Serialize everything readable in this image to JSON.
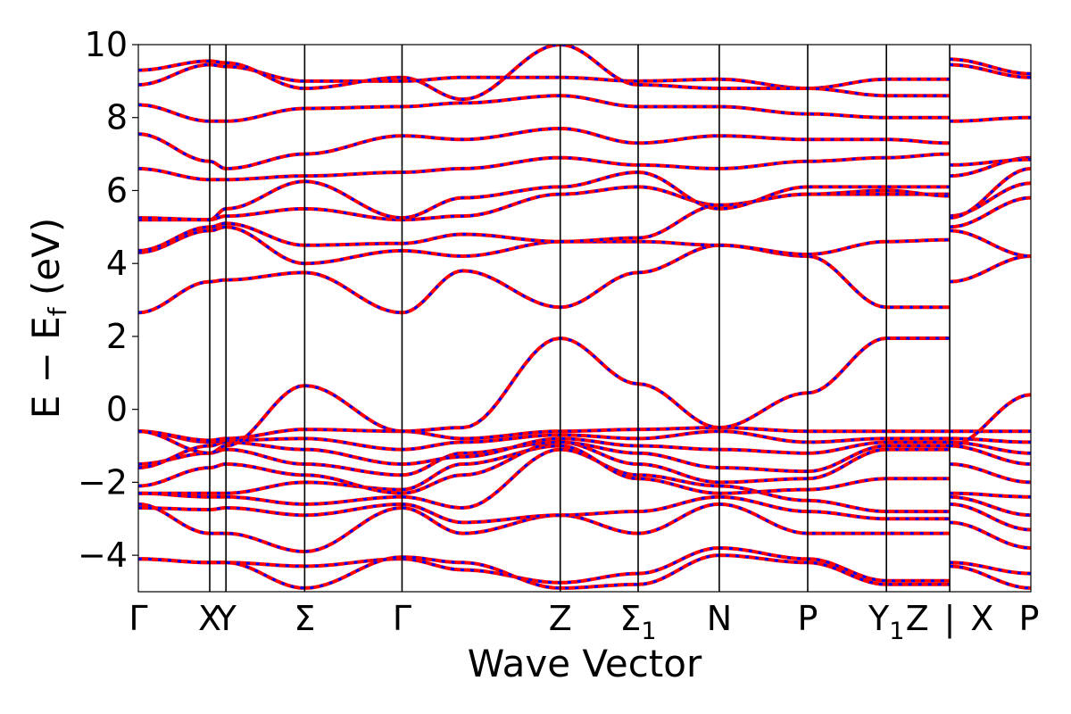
{
  "chart_data": {
    "type": "line",
    "xlabel": "Wave Vector",
    "ylabel": "E − E_f (eV)",
    "ylabel_parts": {
      "main": "E − E",
      "sub": "f",
      "tail": " (eV)"
    },
    "ylim": [
      -5,
      10
    ],
    "yticks": [
      10,
      8,
      6,
      4,
      2,
      0,
      -2,
      -4
    ],
    "ytick_labels": [
      "10",
      "8",
      "6",
      "4",
      "2",
      "0",
      "−2",
      "−4"
    ],
    "grid": false,
    "legend": "none",
    "kpath_positions": [
      0,
      0.088,
      0.108,
      0.205,
      0.325,
      0.52,
      0.616,
      0.716,
      0.825,
      0.922,
      1.0,
      1.0
    ],
    "kpoint_labels": [
      {
        "text": "Γ",
        "pos": 0.0
      },
      {
        "text": "X",
        "pos": 0.088
      },
      {
        "text": "Y",
        "pos": 0.108
      },
      {
        "text": "Σ",
        "pos": 0.205
      },
      {
        "text": "Γ",
        "pos": 0.325
      },
      {
        "text": "Z",
        "pos": 0.52
      },
      {
        "text": "Σ",
        "sub": "1",
        "pos": 0.616
      },
      {
        "text": "N",
        "pos": 0.716
      },
      {
        "text": "P",
        "pos": 0.825
      },
      {
        "text": "Y",
        "sub": "1",
        "pos": 0.922
      },
      {
        "text": "Z",
        "pos": 0.96
      },
      {
        "text": "|",
        "pos": 1.0
      },
      {
        "text": "X",
        "pos": 1.04
      },
      {
        "text": "P",
        "pos": 1.1
      }
    ],
    "vertical_lines": [
      0.088,
      0.108,
      0.205,
      0.325,
      0.52,
      0.616,
      0.716,
      0.825,
      0.922,
      1.0
    ],
    "x_max": 1.1,
    "series_style": {
      "red": "#ff0000",
      "blue": "#0000ff"
    },
    "bands": [
      [
        [
          0,
          -4.1
        ],
        [
          0.088,
          -4.2
        ],
        [
          0.108,
          -4.2
        ],
        [
          0.205,
          -4.3
        ],
        [
          0.325,
          -4.1
        ],
        [
          0.4,
          -4.4
        ],
        [
          0.52,
          -4.75
        ],
        [
          0.616,
          -4.5
        ],
        [
          0.716,
          -3.8
        ],
        [
          0.825,
          -4.1
        ],
        [
          0.922,
          -4.7
        ],
        [
          1.0,
          -4.7
        ],
        [
          1.0,
          -4.2
        ],
        [
          1.1,
          -4.5
        ]
      ],
      [
        [
          0,
          -4.1
        ],
        [
          0.088,
          -4.2
        ],
        [
          0.108,
          -4.2
        ],
        [
          0.205,
          -4.9
        ],
        [
          0.325,
          -4.05
        ],
        [
          0.4,
          -4.2
        ],
        [
          0.52,
          -4.9
        ],
        [
          0.616,
          -4.8
        ],
        [
          0.716,
          -4.0
        ],
        [
          0.825,
          -4.2
        ],
        [
          0.922,
          -4.8
        ],
        [
          1.0,
          -4.8
        ],
        [
          1.0,
          -4.3
        ],
        [
          1.1,
          -4.9
        ]
      ],
      [
        [
          0,
          -2.6
        ],
        [
          0.088,
          -3.4
        ],
        [
          0.108,
          -3.4
        ],
        [
          0.205,
          -3.9
        ],
        [
          0.325,
          -2.7
        ],
        [
          0.4,
          -3.4
        ],
        [
          0.52,
          -2.9
        ],
        [
          0.616,
          -3.4
        ],
        [
          0.716,
          -2.6
        ],
        [
          0.825,
          -3.4
        ],
        [
          0.922,
          -3.4
        ],
        [
          1.0,
          -3.4
        ],
        [
          1.0,
          -3.1
        ],
        [
          1.1,
          -3.8
        ]
      ],
      [
        [
          0,
          -2.7
        ],
        [
          0.088,
          -2.75
        ],
        [
          0.108,
          -2.7
        ],
        [
          0.205,
          -2.9
        ],
        [
          0.325,
          -2.6
        ],
        [
          0.4,
          -3.1
        ],
        [
          0.52,
          -2.9
        ],
        [
          0.616,
          -2.8
        ],
        [
          0.716,
          -2.4
        ],
        [
          0.825,
          -2.8
        ],
        [
          0.922,
          -3.0
        ],
        [
          1.0,
          -3.0
        ],
        [
          1.0,
          -2.6
        ],
        [
          1.1,
          -3.3
        ]
      ],
      [
        [
          0,
          -2.3
        ],
        [
          0.088,
          -2.4
        ],
        [
          0.108,
          -2.4
        ],
        [
          0.205,
          -2.6
        ],
        [
          0.325,
          -2.4
        ],
        [
          0.4,
          -2.7
        ],
        [
          0.52,
          -1.1
        ],
        [
          0.616,
          -1.8
        ],
        [
          0.716,
          -2.1
        ],
        [
          0.825,
          -2.5
        ],
        [
          0.922,
          -2.8
        ],
        [
          1.0,
          -2.8
        ],
        [
          1.0,
          -2.4
        ],
        [
          1.1,
          -2.9
        ]
      ],
      [
        [
          0,
          -2.3
        ],
        [
          0.088,
          -2.3
        ],
        [
          0.108,
          -2.3
        ],
        [
          0.205,
          -2.0
        ],
        [
          0.325,
          -2.2
        ],
        [
          0.4,
          -1.5
        ],
        [
          0.52,
          -1.0
        ],
        [
          0.616,
          -1.9
        ],
        [
          0.716,
          -2.3
        ],
        [
          0.825,
          -2.2
        ],
        [
          0.922,
          -1.9
        ],
        [
          1.0,
          -1.9
        ],
        [
          1.0,
          -2.3
        ],
        [
          1.1,
          -2.4
        ]
      ],
      [
        [
          0,
          -2.1
        ],
        [
          0.088,
          -1.6
        ],
        [
          0.108,
          -1.5
        ],
        [
          0.205,
          -1.8
        ],
        [
          0.325,
          -2.3
        ],
        [
          0.4,
          -1.8
        ],
        [
          0.52,
          -0.9
        ],
        [
          0.616,
          -1.5
        ],
        [
          0.716,
          -2.0
        ],
        [
          0.825,
          -1.9
        ],
        [
          0.922,
          -1.1
        ],
        [
          1.0,
          -1.1
        ],
        [
          1.0,
          -1.5
        ],
        [
          1.1,
          -2.0
        ]
      ],
      [
        [
          0,
          -1.5
        ],
        [
          0.088,
          -1.2
        ],
        [
          0.108,
          -1.1
        ],
        [
          0.205,
          -1.5
        ],
        [
          0.325,
          -1.8
        ],
        [
          0.4,
          -1.2
        ],
        [
          0.52,
          -0.9
        ],
        [
          0.616,
          -1.2
        ],
        [
          0.716,
          -1.6
        ],
        [
          0.825,
          -1.7
        ],
        [
          0.922,
          -1.0
        ],
        [
          1.0,
          -1.0
        ],
        [
          1.0,
          -1.0
        ],
        [
          1.1,
          -1.5
        ]
      ],
      [
        [
          0,
          -1.6
        ],
        [
          0.088,
          -1.0
        ],
        [
          0.108,
          -0.9
        ],
        [
          0.205,
          -1.1
        ],
        [
          0.325,
          -1.5
        ],
        [
          0.4,
          -1.3
        ],
        [
          0.52,
          -0.8
        ],
        [
          0.616,
          -1.0
        ],
        [
          0.716,
          -1.1
        ],
        [
          0.825,
          -1.2
        ],
        [
          0.922,
          -0.9
        ],
        [
          1.0,
          -0.9
        ],
        [
          1.0,
          -0.9
        ],
        [
          1.1,
          -1.2
        ]
      ],
      [
        [
          0,
          -0.6
        ],
        [
          0.088,
          -0.9
        ],
        [
          0.108,
          -0.85
        ],
        [
          0.205,
          -0.8
        ],
        [
          0.325,
          -1.1
        ],
        [
          0.4,
          -0.9
        ],
        [
          0.52,
          -0.7
        ],
        [
          0.616,
          -0.8
        ],
        [
          0.716,
          -0.6
        ],
        [
          0.825,
          -0.9
        ],
        [
          0.922,
          -0.8
        ],
        [
          1.0,
          -0.8
        ],
        [
          1.0,
          -0.8
        ],
        [
          1.1,
          -0.9
        ]
      ],
      [
        [
          0,
          -0.6
        ],
        [
          0.088,
          -0.85
        ],
        [
          0.108,
          -0.8
        ],
        [
          0.205,
          -0.55
        ],
        [
          0.325,
          -0.6
        ],
        [
          0.4,
          -0.8
        ],
        [
          0.52,
          -0.6
        ],
        [
          0.616,
          -0.55
        ],
        [
          0.716,
          -0.5
        ],
        [
          0.825,
          -0.6
        ],
        [
          0.922,
          -0.6
        ],
        [
          1.0,
          -0.6
        ],
        [
          1.0,
          -0.6
        ],
        [
          1.1,
          -0.6
        ]
      ],
      [
        [
          0,
          -0.6
        ],
        [
          0.088,
          -1.2
        ],
        [
          0.108,
          -1.0
        ],
        [
          0.205,
          0.65
        ],
        [
          0.325,
          -0.6
        ],
        [
          0.4,
          -0.5
        ],
        [
          0.52,
          1.95
        ],
        [
          0.616,
          0.7
        ],
        [
          0.716,
          -0.5
        ],
        [
          0.825,
          0.45
        ],
        [
          0.922,
          1.95
        ],
        [
          1.0,
          1.95
        ],
        [
          1.0,
          -1.0
        ],
        [
          1.1,
          0.4
        ]
      ],
      [
        [
          0,
          2.65
        ],
        [
          0.088,
          3.5
        ],
        [
          0.108,
          3.55
        ],
        [
          0.205,
          3.75
        ],
        [
          0.325,
          2.65
        ],
        [
          0.4,
          3.8
        ],
        [
          0.52,
          2.8
        ],
        [
          0.616,
          3.75
        ],
        [
          0.716,
          4.5
        ],
        [
          0.825,
          4.2
        ],
        [
          0.922,
          2.8
        ],
        [
          1.0,
          2.8
        ],
        [
          1.0,
          3.5
        ],
        [
          1.1,
          4.2
        ]
      ],
      [
        [
          0,
          4.3
        ],
        [
          0.088,
          4.9
        ],
        [
          0.108,
          5.0
        ],
        [
          0.205,
          4.0
        ],
        [
          0.325,
          4.35
        ],
        [
          0.4,
          4.2
        ],
        [
          0.52,
          4.6
        ],
        [
          0.616,
          4.6
        ],
        [
          0.716,
          4.5
        ],
        [
          0.825,
          4.25
        ],
        [
          0.922,
          4.6
        ],
        [
          1.0,
          4.65
        ],
        [
          1.0,
          4.9
        ],
        [
          1.1,
          4.2
        ]
      ],
      [
        [
          0,
          4.35
        ],
        [
          0.088,
          5.0
        ],
        [
          0.108,
          5.1
        ],
        [
          0.205,
          4.5
        ],
        [
          0.325,
          4.55
        ],
        [
          0.4,
          4.8
        ],
        [
          0.52,
          4.6
        ],
        [
          0.616,
          4.7
        ],
        [
          0.716,
          5.6
        ],
        [
          0.825,
          5.9
        ],
        [
          0.922,
          5.9
        ],
        [
          1.0,
          5.9
        ],
        [
          1.0,
          5.0
        ],
        [
          1.1,
          5.8
        ]
      ],
      [
        [
          0,
          5.2
        ],
        [
          0.088,
          5.2
        ],
        [
          0.108,
          5.3
        ],
        [
          0.205,
          5.5
        ],
        [
          0.325,
          5.2
        ],
        [
          0.4,
          5.3
        ],
        [
          0.52,
          5.9
        ],
        [
          0.616,
          6.1
        ],
        [
          0.716,
          5.6
        ],
        [
          0.825,
          5.9
        ],
        [
          0.922,
          6.0
        ],
        [
          1.0,
          5.85
        ],
        [
          1.0,
          5.3
        ],
        [
          1.1,
          6.2
        ]
      ],
      [
        [
          0,
          5.25
        ],
        [
          0.088,
          5.2
        ],
        [
          0.108,
          5.5
        ],
        [
          0.205,
          6.25
        ],
        [
          0.325,
          5.25
        ],
        [
          0.4,
          5.8
        ],
        [
          0.52,
          6.1
        ],
        [
          0.616,
          6.5
        ],
        [
          0.716,
          5.5
        ],
        [
          0.825,
          6.1
        ],
        [
          0.922,
          6.1
        ],
        [
          1.0,
          6.1
        ],
        [
          1.0,
          5.25
        ],
        [
          1.1,
          6.6
        ]
      ],
      [
        [
          0,
          6.6
        ],
        [
          0.088,
          6.3
        ],
        [
          0.108,
          6.3
        ],
        [
          0.205,
          6.4
        ],
        [
          0.325,
          6.5
        ],
        [
          0.4,
          6.6
        ],
        [
          0.52,
          6.9
        ],
        [
          0.616,
          6.7
        ],
        [
          0.716,
          6.6
        ],
        [
          0.825,
          6.8
        ],
        [
          0.922,
          6.9
        ],
        [
          1.0,
          7.0
        ],
        [
          1.0,
          6.4
        ],
        [
          1.1,
          6.9
        ]
      ],
      [
        [
          0,
          7.55
        ],
        [
          0.088,
          6.8
        ],
        [
          0.108,
          6.6
        ],
        [
          0.205,
          7.0
        ],
        [
          0.325,
          7.5
        ],
        [
          0.4,
          7.4
        ],
        [
          0.52,
          7.7
        ],
        [
          0.616,
          7.3
        ],
        [
          0.716,
          7.5
        ],
        [
          0.825,
          7.4
        ],
        [
          0.922,
          7.4
        ],
        [
          1.0,
          7.3
        ],
        [
          1.0,
          6.7
        ],
        [
          1.1,
          6.85
        ]
      ],
      [
        [
          0,
          8.35
        ],
        [
          0.088,
          7.9
        ],
        [
          0.108,
          7.9
        ],
        [
          0.205,
          8.25
        ],
        [
          0.325,
          8.3
        ],
        [
          0.4,
          8.4
        ],
        [
          0.52,
          8.6
        ],
        [
          0.616,
          8.3
        ],
        [
          0.716,
          8.3
        ],
        [
          0.825,
          8.1
        ],
        [
          0.922,
          8.0
        ],
        [
          1.0,
          8.0
        ],
        [
          1.0,
          7.9
        ],
        [
          1.1,
          8.0
        ]
      ],
      [
        [
          0,
          8.9
        ],
        [
          0.088,
          9.45
        ],
        [
          0.108,
          9.4
        ],
        [
          0.205,
          9.0
        ],
        [
          0.325,
          9.0
        ],
        [
          0.4,
          9.1
        ],
        [
          0.52,
          9.1
        ],
        [
          0.616,
          9.0
        ],
        [
          0.716,
          9.05
        ],
        [
          0.825,
          8.8
        ],
        [
          0.922,
          9.05
        ],
        [
          1.0,
          9.05
        ],
        [
          1.0,
          9.45
        ],
        [
          1.1,
          9.1
        ]
      ],
      [
        [
          0,
          9.3
        ],
        [
          0.088,
          9.55
        ],
        [
          0.108,
          9.5
        ],
        [
          0.205,
          8.8
        ],
        [
          0.325,
          9.1
        ],
        [
          0.4,
          8.5
        ],
        [
          0.52,
          10.0
        ],
        [
          0.616,
          8.9
        ],
        [
          0.716,
          8.8
        ],
        [
          0.825,
          8.8
        ],
        [
          0.922,
          8.6
        ],
        [
          1.0,
          8.6
        ],
        [
          1.0,
          9.6
        ],
        [
          1.1,
          9.2
        ]
      ]
    ]
  }
}
